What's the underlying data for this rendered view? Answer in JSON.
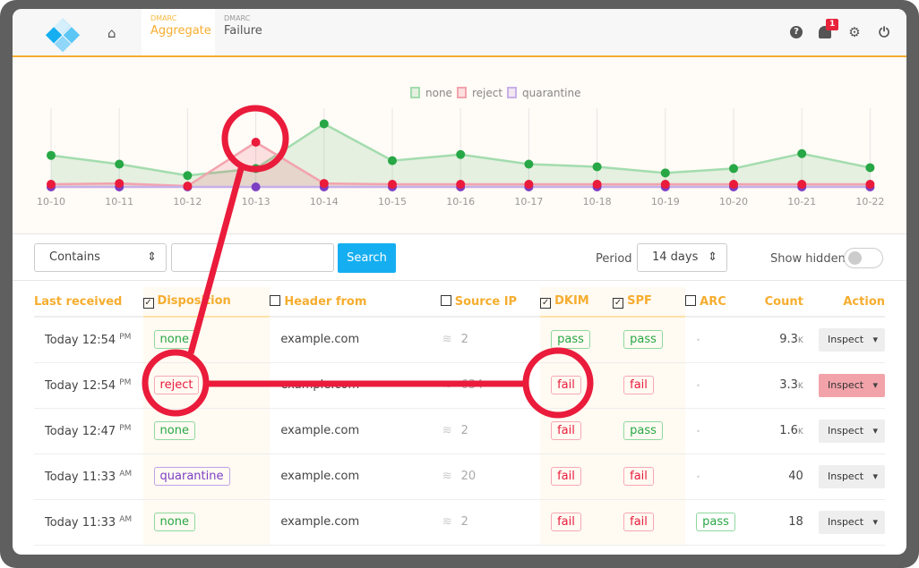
{
  "header": {
    "tabs": [
      {
        "small": "DMARC",
        "label": "Aggregate"
      },
      {
        "small": "DMARC",
        "label": "Failure"
      }
    ],
    "notification_count": "1",
    "icons": [
      "home-icon",
      "help-icon",
      "bell-icon",
      "gear-icon",
      "power-icon"
    ],
    "accent": "#f6ad2f"
  },
  "chart_data": {
    "type": "area",
    "legend_position": "top-center",
    "grid": "vertical",
    "categories": [
      "10-10",
      "10-11",
      "10-12",
      "10-13",
      "10-14",
      "10-15",
      "10-16",
      "10-17",
      "10-18",
      "10-19",
      "10-20",
      "10-21",
      "10-22"
    ],
    "series": [
      {
        "name": "none",
        "color": "#27a745",
        "values": [
          36,
          26,
          13,
          21,
          72,
          30,
          37,
          26,
          23,
          16,
          21,
          38,
          22
        ]
      },
      {
        "name": "reject",
        "color": "#ea1b3b",
        "values": [
          3,
          4,
          1,
          51,
          4,
          3,
          3,
          3,
          3,
          3,
          3,
          3,
          3
        ]
      },
      {
        "name": "quarantine",
        "color": "#7b3fc4",
        "values": [
          0,
          0,
          0,
          0,
          0,
          0,
          0,
          0,
          0,
          0,
          0,
          0,
          0
        ]
      }
    ]
  },
  "toolbar": {
    "filter_mode": "Contains",
    "search_value": "",
    "search_label": "Search",
    "period_label": "Period",
    "period_value": "14 days",
    "show_hidden_label": "Show hidden",
    "show_hidden": false
  },
  "table": {
    "columns": [
      {
        "label": "Last received"
      },
      {
        "label": "Disposition",
        "checked": true
      },
      {
        "label": "Header from",
        "checked": false
      },
      {
        "label": "Source IP",
        "checked": false
      },
      {
        "label": "DKIM",
        "checked": true
      },
      {
        "label": "SPF",
        "checked": true
      },
      {
        "label": "ARC",
        "checked": false
      },
      {
        "label": "Count"
      },
      {
        "label": "Action"
      }
    ],
    "rows": [
      {
        "time": "Today 12:54",
        "ampm": "PM",
        "disposition": "none",
        "from": "example.com",
        "ips": "2",
        "dkim": "pass",
        "spf": "pass",
        "arc": "",
        "count": "9.3",
        "unit": "K",
        "action": "Inspect"
      },
      {
        "time": "Today 12:54",
        "ampm": "PM",
        "disposition": "reject",
        "from": "example.com",
        "ips": "634",
        "dkim": "fail",
        "spf": "fail",
        "arc": "",
        "count": "3.3",
        "unit": "K",
        "action": "Inspect"
      },
      {
        "time": "Today 12:47",
        "ampm": "PM",
        "disposition": "none",
        "from": "example.com",
        "ips": "2",
        "dkim": "fail",
        "spf": "pass",
        "arc": "",
        "count": "1.6",
        "unit": "K",
        "action": "Inspect"
      },
      {
        "time": "Today 11:33",
        "ampm": "AM",
        "disposition": "quarantine",
        "from": "example.com",
        "ips": "20",
        "dkim": "fail",
        "spf": "fail",
        "arc": "",
        "count": "40",
        "unit": "",
        "action": "Inspect"
      },
      {
        "time": "Today 11:33",
        "ampm": "AM",
        "disposition": "none",
        "from": "example.com",
        "ips": "2",
        "dkim": "fail",
        "spf": "fail",
        "arc": "pass",
        "count": "18",
        "unit": "",
        "action": "Inspect"
      }
    ]
  }
}
